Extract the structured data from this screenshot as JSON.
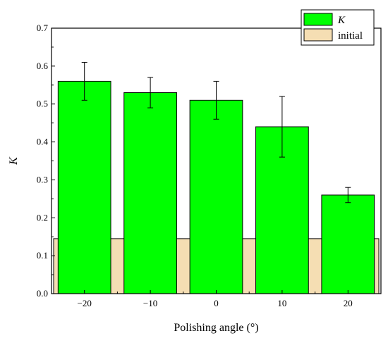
{
  "chart_data": {
    "type": "bar",
    "xlabel": "Polishing angle (°)",
    "ylabel": "K",
    "categories": [
      "-20",
      "-10",
      "0",
      "10",
      "20"
    ],
    "x": [
      -20,
      -10,
      0,
      10,
      20
    ],
    "xlim": [
      -25,
      25
    ],
    "ylim": [
      0,
      0.7
    ],
    "yticks": [
      "0.0",
      "0.1",
      "0.2",
      "0.3",
      "0.4",
      "0.5",
      "0.6",
      "0.7"
    ],
    "xticks": [
      "−20",
      "−10",
      "0",
      "10",
      "20"
    ],
    "legend_position": "top-right",
    "grid": false,
    "series": [
      {
        "name": "K",
        "color": "#00ff00",
        "values": [
          0.56,
          0.53,
          0.51,
          0.44,
          0.26
        ],
        "error_low": [
          0.51,
          0.49,
          0.46,
          0.36,
          0.24
        ],
        "error_high": [
          0.61,
          0.57,
          0.56,
          0.52,
          0.28
        ]
      },
      {
        "name": "initial",
        "color": "#f5deb3",
        "value": 0.145,
        "x_range": [
          -25,
          25
        ]
      }
    ]
  }
}
